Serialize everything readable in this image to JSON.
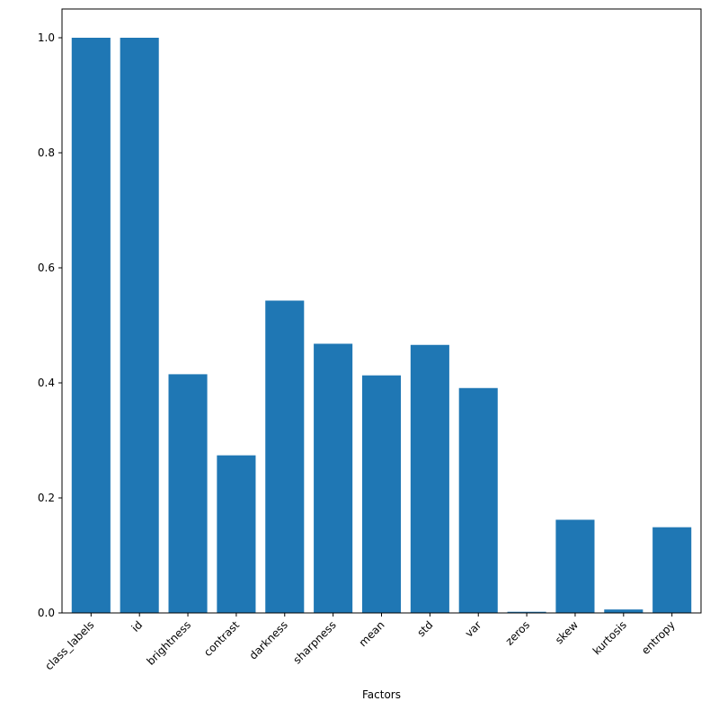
{
  "chart_data": {
    "type": "bar",
    "title": "",
    "xlabel": "Factors",
    "ylabel": "",
    "categories": [
      "class_labels",
      "id",
      "brightness",
      "contrast",
      "darkness",
      "sharpness",
      "mean",
      "std",
      "var",
      "zeros",
      "skew",
      "kurtosis",
      "entropy"
    ],
    "values": [
      1.0,
      1.0,
      0.415,
      0.274,
      0.543,
      0.468,
      0.413,
      0.466,
      0.391,
      0.002,
      0.162,
      0.006,
      0.149
    ],
    "ylim": [
      0,
      1.05
    ],
    "yticks": [
      "0.0",
      "0.2",
      "0.4",
      "0.6",
      "0.8",
      "1.0"
    ],
    "bar_color": "#1f77b4",
    "grid": false
  }
}
